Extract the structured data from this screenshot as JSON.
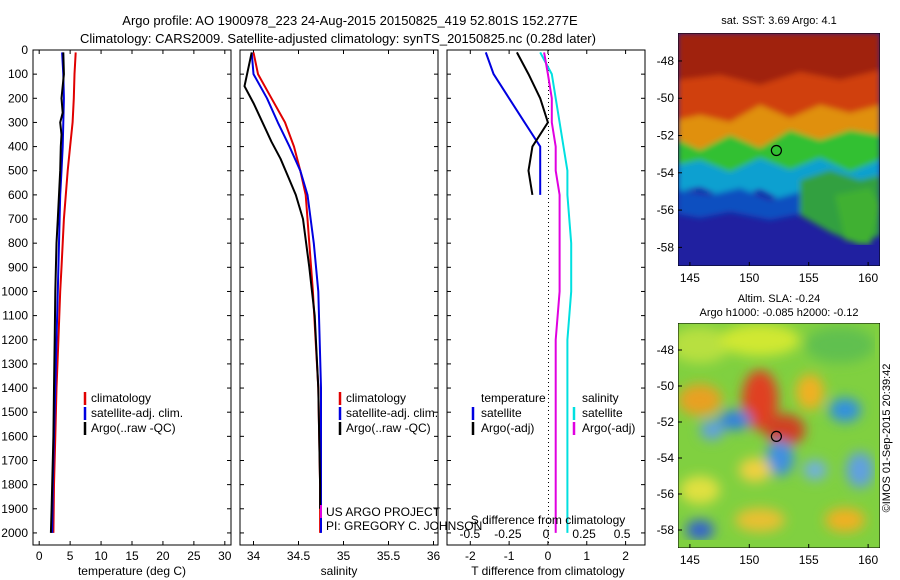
{
  "header": {
    "line1": "Argo profile: AO 1900978_223 24-Aug-2015 20150825_419 52.801S 152.277E",
    "line2": "Climatology: CARS2009. Satellite-adjusted climatology: synTS_20150825.nc (0.28d later)"
  },
  "colors": {
    "climatology": "#e00000",
    "satellite": "#0000e0",
    "argo": "#000000",
    "sat_temp_diff": "#00e0e0",
    "sat_sal_diff": "#e000e0"
  },
  "credits": {
    "line1": "US ARGO PROJECT",
    "line2": "PI: GREGORY C. JOHNSON",
    "side": "©IMOS 01-Sep-2015 20:39:42"
  },
  "chart_data": [
    {
      "type": "line",
      "xlabel": "temperature (deg C)",
      "ylabel": "",
      "xlim": [
        -1,
        31
      ],
      "ylim": [
        2050,
        0
      ],
      "xticks": [
        0,
        5,
        10,
        15,
        20,
        25,
        30
      ],
      "yticks": [
        0,
        100,
        200,
        300,
        400,
        500,
        600,
        700,
        800,
        900,
        1000,
        1100,
        1200,
        1300,
        1400,
        1500,
        1600,
        1700,
        1800,
        1900,
        2000
      ],
      "legend": [
        "climatology",
        "satellite-adj. clim.",
        "Argo(..raw -QC)"
      ],
      "series": [
        {
          "name": "climatology",
          "x": [
            5.9,
            5.7,
            5.6,
            5.4,
            5.0,
            4.6,
            4.3,
            4.0,
            3.8,
            3.6,
            3.4,
            3.1,
            2.8,
            2.6,
            2.4,
            2.3
          ],
          "y": [
            10,
            100,
            200,
            300,
            400,
            500,
            600,
            700,
            800,
            900,
            1000,
            1200,
            1400,
            1600,
            1800,
            2000
          ]
        },
        {
          "name": "satellite-adj. clim.",
          "x": [
            3.7,
            3.9,
            4.0,
            3.9,
            3.8,
            3.6,
            3.4,
            3.3,
            3.2,
            3.1,
            3.0,
            2.8,
            2.6,
            2.4,
            2.2,
            2.1
          ],
          "y": [
            10,
            100,
            200,
            300,
            400,
            500,
            600,
            700,
            800,
            900,
            1000,
            1200,
            1400,
            1600,
            1800,
            2000
          ]
        },
        {
          "name": "Argo(..raw -QC)",
          "x": [
            3.9,
            4.0,
            3.6,
            3.8,
            3.4,
            3.6,
            3.5,
            3.4,
            3.2,
            3.0,
            2.8,
            2.6,
            2.5,
            2.4,
            2.3,
            2.1,
            2.0,
            1.9
          ],
          "y": [
            10,
            100,
            200,
            260,
            300,
            350,
            400,
            500,
            600,
            700,
            800,
            1000,
            1200,
            1400,
            1600,
            1800,
            1900,
            2000
          ]
        }
      ]
    },
    {
      "type": "line",
      "xlabel": "salinity",
      "ylabel": "",
      "xlim": [
        33.85,
        36.05
      ],
      "ylim": [
        2050,
        0
      ],
      "xticks": [
        34,
        34.5,
        35,
        35.5,
        36
      ],
      "legend": [
        "climatology",
        "satellite-adj. clim.",
        "Argo(..raw -QC)"
      ],
      "series": [
        {
          "name": "climatology",
          "x": [
            34.0,
            34.05,
            34.2,
            34.35,
            34.45,
            34.52,
            34.58,
            34.62,
            34.66,
            34.72,
            34.74,
            34.74
          ],
          "y": [
            10,
            100,
            200,
            300,
            400,
            500,
            600,
            800,
            1000,
            1400,
            1800,
            2000
          ]
        },
        {
          "name": "satellite-adj. clim.",
          "x": [
            33.98,
            34.0,
            34.15,
            34.27,
            34.4,
            34.52,
            34.6,
            34.67,
            34.72,
            34.75,
            34.75,
            34.75
          ],
          "y": [
            10,
            100,
            200,
            300,
            400,
            500,
            600,
            800,
            1000,
            1400,
            1800,
            2000
          ]
        },
        {
          "name": "Argo(..raw -QC)",
          "x": [
            33.98,
            33.9,
            34.0,
            34.1,
            34.2,
            34.3,
            34.38,
            34.47,
            34.55,
            34.62,
            34.68,
            34.72,
            34.74,
            34.74
          ],
          "y": [
            10,
            150,
            220,
            300,
            380,
            450,
            520,
            600,
            700,
            900,
            1100,
            1400,
            1800,
            1900
          ]
        }
      ]
    },
    {
      "type": "line",
      "xlabel": "T difference from climatology",
      "xlabel_top": "S difference from climatology",
      "ylabel": "",
      "xlim": [
        -2.6,
        2.5
      ],
      "ylim": [
        2050,
        0
      ],
      "xticks": [
        -2,
        -1,
        0,
        1,
        2
      ],
      "xticks_top": [
        -0.5,
        -0.25,
        0,
        0.25,
        0.5
      ],
      "legend_headers": [
        "temperature",
        "salinity"
      ],
      "legend": [
        "satellite",
        "Argo(-adj)",
        "satellite",
        "Argo(-adj)"
      ],
      "series": [
        {
          "name": "satellite",
          "group": "temperature",
          "x": [
            -1.6,
            -1.4,
            -1.0,
            -0.6,
            -0.2,
            -0.2
          ],
          "y": [
            10,
            100,
            200,
            300,
            400,
            600
          ]
        },
        {
          "name": "Argo(-adj)",
          "group": "temperature",
          "x": [
            -0.8,
            -0.5,
            -0.2,
            0.0,
            -0.4,
            -0.5,
            -0.4
          ],
          "y": [
            10,
            100,
            200,
            300,
            400,
            500,
            600
          ]
        },
        {
          "name": "satellite",
          "group": "salinity",
          "x": [
            -0.2,
            0.1,
            0.2,
            0.3,
            0.4,
            0.5,
            0.5,
            0.6,
            0.6,
            0.5,
            0.5,
            0.5,
            0.5
          ],
          "y": [
            10,
            100,
            200,
            300,
            400,
            500,
            600,
            800,
            1000,
            1200,
            1400,
            1600,
            2000
          ]
        },
        {
          "name": "Argo(-adj)",
          "group": "salinity",
          "x": [
            -0.1,
            0.0,
            0.1,
            0.1,
            0.2,
            0.2,
            0.3,
            0.3,
            0.3,
            0.2,
            0.2,
            0.2,
            0.2
          ],
          "y": [
            10,
            100,
            200,
            300,
            400,
            500,
            600,
            800,
            1000,
            1200,
            1400,
            1600,
            2000
          ]
        }
      ]
    },
    {
      "type": "heatmap",
      "title": "sat. SST: 3.69 Argo: 4.1",
      "xlim": [
        144,
        161
      ],
      "ylim": [
        -59,
        -46.5
      ],
      "xticks": [
        145,
        150,
        155,
        160
      ],
      "yticks": [
        -48,
        -50,
        -52,
        -54,
        -56,
        -58
      ],
      "marker": {
        "lon": 152.277,
        "lat": -52.801
      }
    },
    {
      "type": "heatmap",
      "title": "Altim. SLA: -0.24",
      "subtitle": "Argo h1000: -0.085 h2000: -0.12",
      "xlim": [
        144,
        161
      ],
      "ylim": [
        -59,
        -46.5
      ],
      "xticks": [
        145,
        150,
        155,
        160
      ],
      "yticks": [
        -48,
        -50,
        -52,
        -54,
        -56,
        -58
      ],
      "marker": {
        "lon": 152.277,
        "lat": -52.801
      }
    }
  ]
}
